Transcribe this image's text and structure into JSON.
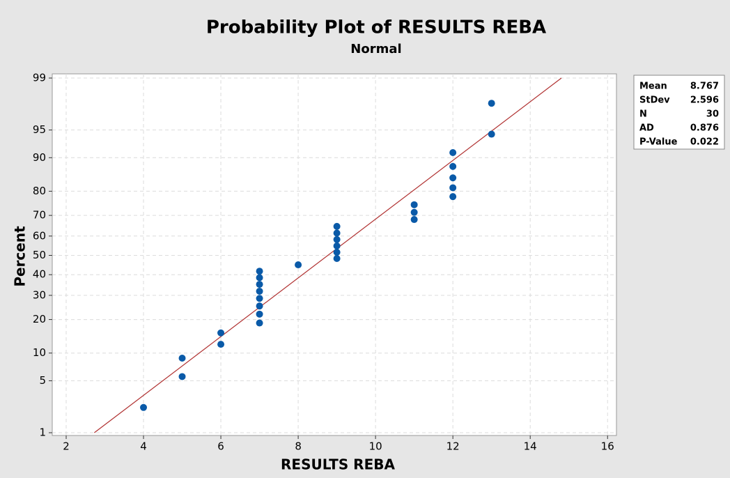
{
  "chart_data": {
    "type": "probability",
    "title": "Probability Plot of RESULTS REBA",
    "subtitle": "Normal",
    "xlabel": "RESULTS REBA",
    "ylabel": "Percent",
    "x": [
      4,
      5,
      5,
      6,
      6,
      7,
      7,
      7,
      7,
      7,
      7,
      7,
      7,
      8,
      9,
      9,
      9,
      9,
      9,
      9,
      11,
      11,
      11,
      12,
      12,
      12,
      12,
      12,
      13,
      13
    ],
    "values": [
      2.3,
      5.59,
      8.88,
      12.17,
      15.46,
      18.75,
      22.04,
      25.33,
      28.62,
      31.91,
      35.2,
      38.49,
      41.78,
      45.07,
      48.36,
      51.64,
      54.93,
      58.22,
      61.51,
      64.8,
      68.09,
      71.38,
      74.67,
      77.96,
      81.25,
      84.54,
      87.83,
      91.12,
      94.41,
      97.7
    ],
    "color": "#0a5aa8",
    "fit_color": "#b03030",
    "xlim": [
      1.64,
      16.23
    ],
    "xticks": [
      2,
      4,
      6,
      8,
      10,
      12,
      14,
      16
    ],
    "ylim": [
      1,
      99
    ],
    "yticks": [
      1,
      5,
      10,
      20,
      30,
      40,
      50,
      60,
      70,
      80,
      90,
      95,
      99
    ],
    "grid": true,
    "stats": [
      {
        "label": "Mean",
        "value": 8.767
      },
      {
        "label": "StDev",
        "value": 2.596
      },
      {
        "label": "N",
        "value": 30
      },
      {
        "label": "AD",
        "value": 0.876
      },
      {
        "label": "P-Value",
        "value": 0.022
      }
    ]
  }
}
